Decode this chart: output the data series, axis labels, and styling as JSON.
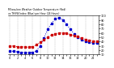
{
  "title": "Milwaukee Weather Outdoor Temperature (Red) vs THSW Index (Blue) per Hour (24 Hours)",
  "hours": [
    0,
    1,
    2,
    3,
    4,
    5,
    6,
    7,
    8,
    9,
    10,
    11,
    12,
    13,
    14,
    15,
    16,
    17,
    18,
    19,
    20,
    21,
    22,
    23
  ],
  "temp_red": [
    30,
    29,
    28,
    28,
    27,
    27,
    28,
    32,
    38,
    44,
    50,
    55,
    58,
    60,
    60,
    59,
    56,
    54,
    51,
    48,
    45,
    43,
    41,
    40
  ],
  "thsw_blue": [
    18,
    17,
    16,
    15,
    14,
    14,
    15,
    18,
    30,
    48,
    68,
    82,
    92,
    95,
    90,
    80,
    68,
    58,
    50,
    44,
    40,
    38,
    37,
    36
  ],
  "red_color": "#cc0000",
  "blue_color": "#0000cc",
  "bg_color": "#ffffff",
  "plot_bg": "#f0f0f0",
  "ylim_min": 10,
  "ylim_max": 100,
  "ytick_right_labels": [
    "10",
    "20",
    "30",
    "40",
    "50",
    "60",
    "70",
    "80",
    "90",
    "100"
  ],
  "ytick_right_values": [
    10,
    20,
    30,
    40,
    50,
    60,
    70,
    80,
    90,
    100
  ],
  "xticks": [
    0,
    1,
    2,
    3,
    4,
    5,
    6,
    7,
    8,
    9,
    10,
    11,
    12,
    13,
    14,
    15,
    16,
    17,
    18,
    19,
    20,
    21,
    22,
    23
  ],
  "grid_color": "#999999",
  "marker_size": 2,
  "line_width": 0.7
}
